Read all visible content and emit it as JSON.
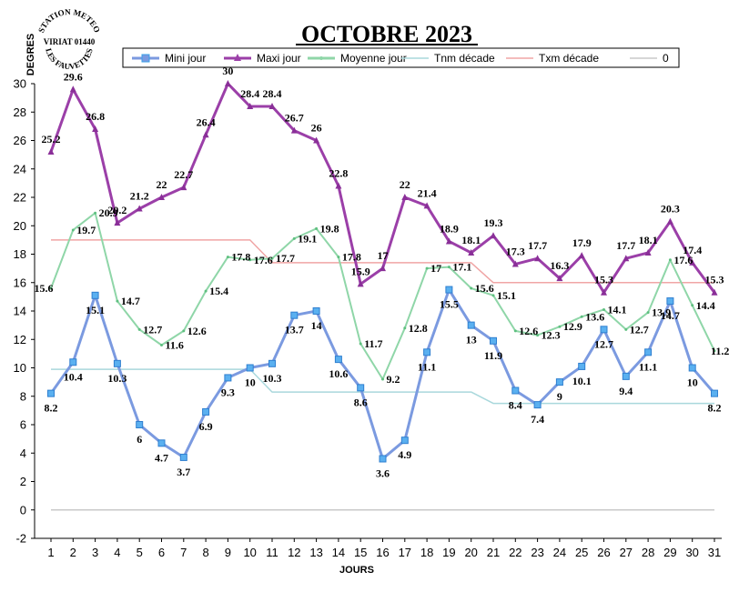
{
  "chart_data": {
    "type": "line",
    "title": "OCTOBRE 2023",
    "ylabel": "DEGRES",
    "xlabel": "JOURS",
    "stamp": {
      "top": "STATION METEO",
      "middle": "VIRIAT 01440",
      "bottom": "LES FAUVETTES"
    },
    "x": [
      1,
      2,
      3,
      4,
      5,
      6,
      7,
      8,
      9,
      10,
      11,
      12,
      13,
      14,
      15,
      16,
      17,
      18,
      19,
      20,
      21,
      22,
      23,
      24,
      25,
      26,
      27,
      28,
      29,
      30,
      31
    ],
    "ylim": [
      -2,
      30
    ],
    "ytick_step": 2,
    "legend_position": "top",
    "series": [
      {
        "name": "Mini jour",
        "color": "#7b9ae0",
        "marker": "square-star",
        "labels": true,
        "values": [
          8.2,
          10.4,
          15.1,
          10.3,
          6,
          4.7,
          3.7,
          6.9,
          9.3,
          10,
          10.3,
          13.7,
          14,
          10.6,
          8.6,
          3.6,
          4.9,
          11.1,
          15.5,
          13,
          11.9,
          8.4,
          7.4,
          9,
          10.1,
          12.7,
          9.4,
          11.1,
          14.7,
          10,
          8.2
        ]
      },
      {
        "name": "Maxi jour",
        "color": "#9b3fa8",
        "marker": "triangle",
        "labels": true,
        "values": [
          25.2,
          29.6,
          26.8,
          20.2,
          21.2,
          22,
          22.7,
          26.4,
          30,
          28.4,
          28.4,
          26.7,
          26,
          22.8,
          15.9,
          17,
          22,
          21.4,
          18.9,
          18.1,
          19.3,
          17.3,
          17.7,
          16.3,
          17.9,
          15.3,
          17.7,
          18.1,
          20.3,
          17.4,
          15.3
        ]
      },
      {
        "name": "Moyenne jour",
        "color": "#8fd6a8",
        "marker": "dot",
        "labels": true,
        "values": [
          15.6,
          19.7,
          20.9,
          14.7,
          12.7,
          11.6,
          12.6,
          15.4,
          17.8,
          17.6,
          17.7,
          19.1,
          19.8,
          17.8,
          11.7,
          9.2,
          12.8,
          17,
          17.1,
          15.6,
          15.1,
          12.6,
          12.3,
          12.9,
          13.6,
          14.1,
          12.7,
          13.9,
          17.6,
          14.4,
          11.2
        ]
      },
      {
        "name": "Tnm décade",
        "color": "#a9d8dc",
        "marker": "none",
        "labels": false,
        "values": [
          9.9,
          9.9,
          9.9,
          9.9,
          9.9,
          9.9,
          9.9,
          9.9,
          9.9,
          9.9,
          8.3,
          8.3,
          8.3,
          8.3,
          8.3,
          8.3,
          8.3,
          8.3,
          8.3,
          8.3,
          7.5,
          7.5,
          7.5,
          7.5,
          7.5,
          7.5,
          7.5,
          7.5,
          7.5,
          7.5,
          7.5
        ]
      },
      {
        "name": "Txm décade",
        "color": "#f0a5a5",
        "marker": "none",
        "labels": false,
        "values": [
          19,
          19,
          19,
          19,
          19,
          19,
          19,
          19,
          19,
          19,
          17.4,
          17.4,
          17.4,
          17.4,
          17.4,
          17.4,
          17.4,
          17.4,
          17.4,
          17.4,
          16,
          16,
          16,
          16,
          16,
          16,
          16,
          16,
          16,
          16,
          16
        ]
      },
      {
        "name": "0",
        "color": "#c8c8c8",
        "marker": "none",
        "labels": false,
        "values": [
          0,
          0,
          0,
          0,
          0,
          0,
          0,
          0,
          0,
          0,
          0,
          0,
          0,
          0,
          0,
          0,
          0,
          0,
          0,
          0,
          0,
          0,
          0,
          0,
          0,
          0,
          0,
          0,
          0,
          0,
          0
        ]
      }
    ]
  }
}
